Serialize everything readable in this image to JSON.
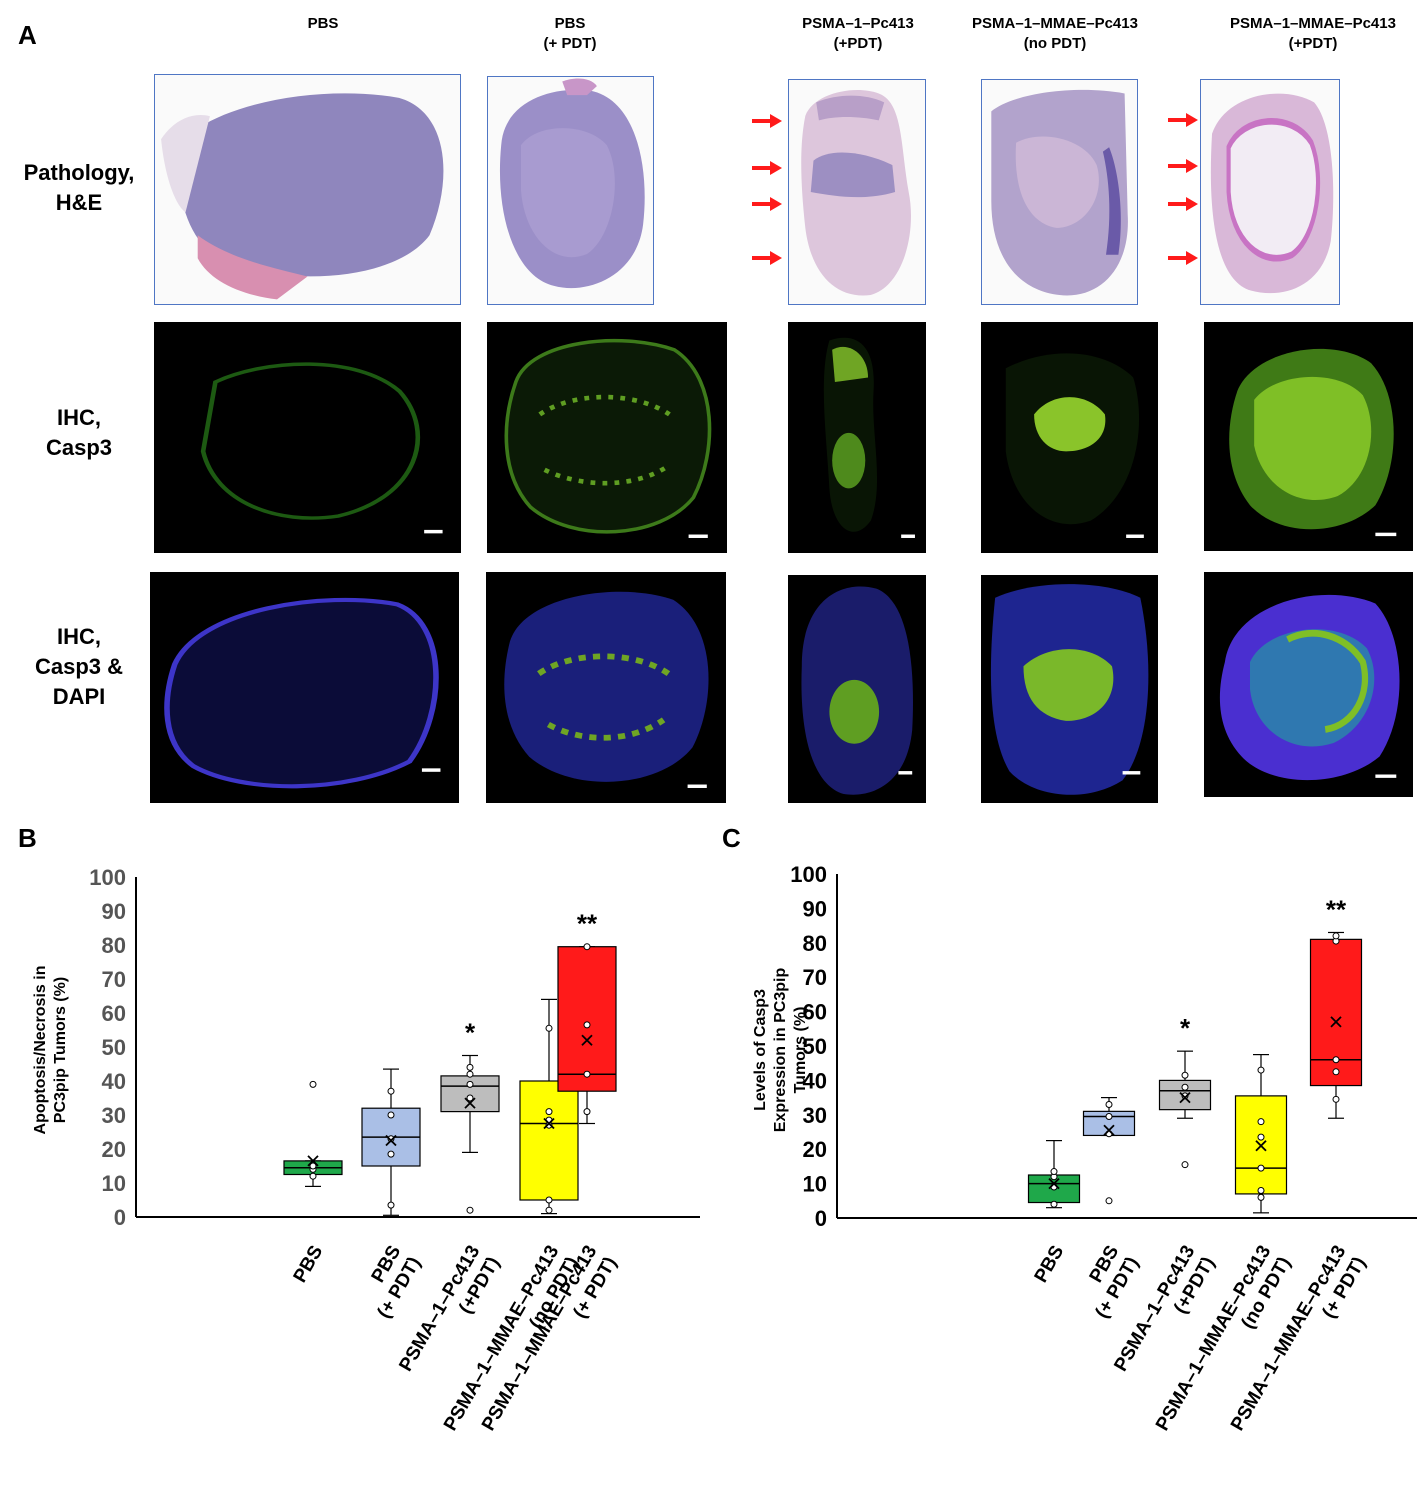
{
  "panels": {
    "a": "A",
    "b": "B",
    "c": "C"
  },
  "columns": [
    "PBS",
    "PBS\n(+ PDT)",
    "PSMA–1–Pc413\n(+PDT)",
    "PSMA–1–MMAE–Pc413\n(no PDT)",
    "PSMA–1–MMAE–Pc413\n(+PDT)"
  ],
  "rows": [
    "Pathology,\nH&E",
    "IHC,\nCasp3",
    "IHC,\nCasp3 &\nDAPI"
  ],
  "colors": {
    "frame": "#4f76c4",
    "arrow": "#ff1a1a",
    "he_fill": "#9b8fc2",
    "casp3": "#8fd12a",
    "dapi": "#3b32c8",
    "boxes": [
      "#1fa84a",
      "#aabfe6",
      "#bdbdbd",
      "#ffff00",
      "#ff1a1a"
    ]
  },
  "chart_data": [
    {
      "type": "box",
      "ylabel": "Apoptosis/Necrosis in\nPC3pip Tumors (%)",
      "ylim": [
        0,
        100
      ],
      "yticks": [
        0,
        10,
        20,
        30,
        40,
        50,
        60,
        70,
        80,
        90,
        100
      ],
      "categories": [
        "PBS",
        "PBS\n(+ PDT)",
        "PSMA–1–Pc413\n(+PDT)",
        "PSMA–1–MMAE–Pc413\n(no PDT)",
        "PSMA–1–MMAE–Pc413\n(+ PDT)"
      ],
      "boxes": [
        {
          "min": 9,
          "q1": 12.5,
          "median": 14.5,
          "q3": 16.5,
          "max": 16.5,
          "mean": 16.5,
          "points": [
            12,
            14,
            15,
            39
          ],
          "sig": ""
        },
        {
          "min": 0.5,
          "q1": 15,
          "median": 23.5,
          "q3": 32,
          "max": 43.5,
          "mean": 22.5,
          "points": [
            3.5,
            18.5,
            23,
            30,
            37
          ],
          "sig": ""
        },
        {
          "min": 19,
          "q1": 31,
          "median": 38.5,
          "q3": 41.5,
          "max": 47.5,
          "mean": 33.5,
          "points": [
            2,
            35,
            39,
            42,
            44
          ],
          "sig": "*"
        },
        {
          "min": 1,
          "q1": 5,
          "median": 27.5,
          "q3": 40,
          "max": 64,
          "mean": 27.5,
          "points": [
            2,
            5,
            27,
            28.5,
            31,
            55.5
          ],
          "sig": ""
        },
        {
          "min": 27.5,
          "q1": 37,
          "median": 42,
          "q3": 79.5,
          "max": 79.5,
          "mean": 52,
          "points": [
            31,
            42,
            56.5,
            79.5
          ],
          "sig": "**"
        }
      ]
    },
    {
      "type": "box",
      "ylabel": "Levels of Casp3\nExpression in PC3pip\nTumors (%)",
      "ylim": [
        0,
        100
      ],
      "yticks": [
        0,
        10,
        20,
        30,
        40,
        50,
        60,
        70,
        80,
        90,
        100
      ],
      "categories": [
        "PBS",
        "PBS\n(+ PDT)",
        "PSMA–1–Pc413\n(+PDT)",
        "PSMA–1–MMAE–Pc413\n(no PDT)",
        "PSMA–1–MMAE–Pc413\n(+ PDT)"
      ],
      "boxes": [
        {
          "min": 3,
          "q1": 4.5,
          "median": 10,
          "q3": 12.5,
          "max": 22.5,
          "mean": 10,
          "points": [
            4,
            9,
            12,
            13.5
          ],
          "sig": ""
        },
        {
          "min": 24,
          "q1": 24,
          "median": 29.5,
          "q3": 31,
          "max": 35,
          "mean": 25.5,
          "points": [
            5,
            24.5,
            29.5,
            33
          ],
          "sig": ""
        },
        {
          "min": 29,
          "q1": 31.5,
          "median": 37,
          "q3": 40,
          "max": 48.5,
          "mean": 35,
          "points": [
            15.5,
            35.5,
            38,
            41.5
          ],
          "sig": "*"
        },
        {
          "min": 1.5,
          "q1": 7,
          "median": 14.5,
          "q3": 35.5,
          "max": 47.5,
          "mean": 21,
          "points": [
            6,
            8,
            14.5,
            23.5,
            28,
            43
          ],
          "sig": ""
        },
        {
          "min": 29,
          "q1": 38.5,
          "median": 46,
          "q3": 81,
          "max": 83,
          "mean": 57,
          "points": [
            34.5,
            42.5,
            46,
            80.5,
            82
          ],
          "sig": "**"
        }
      ]
    }
  ]
}
